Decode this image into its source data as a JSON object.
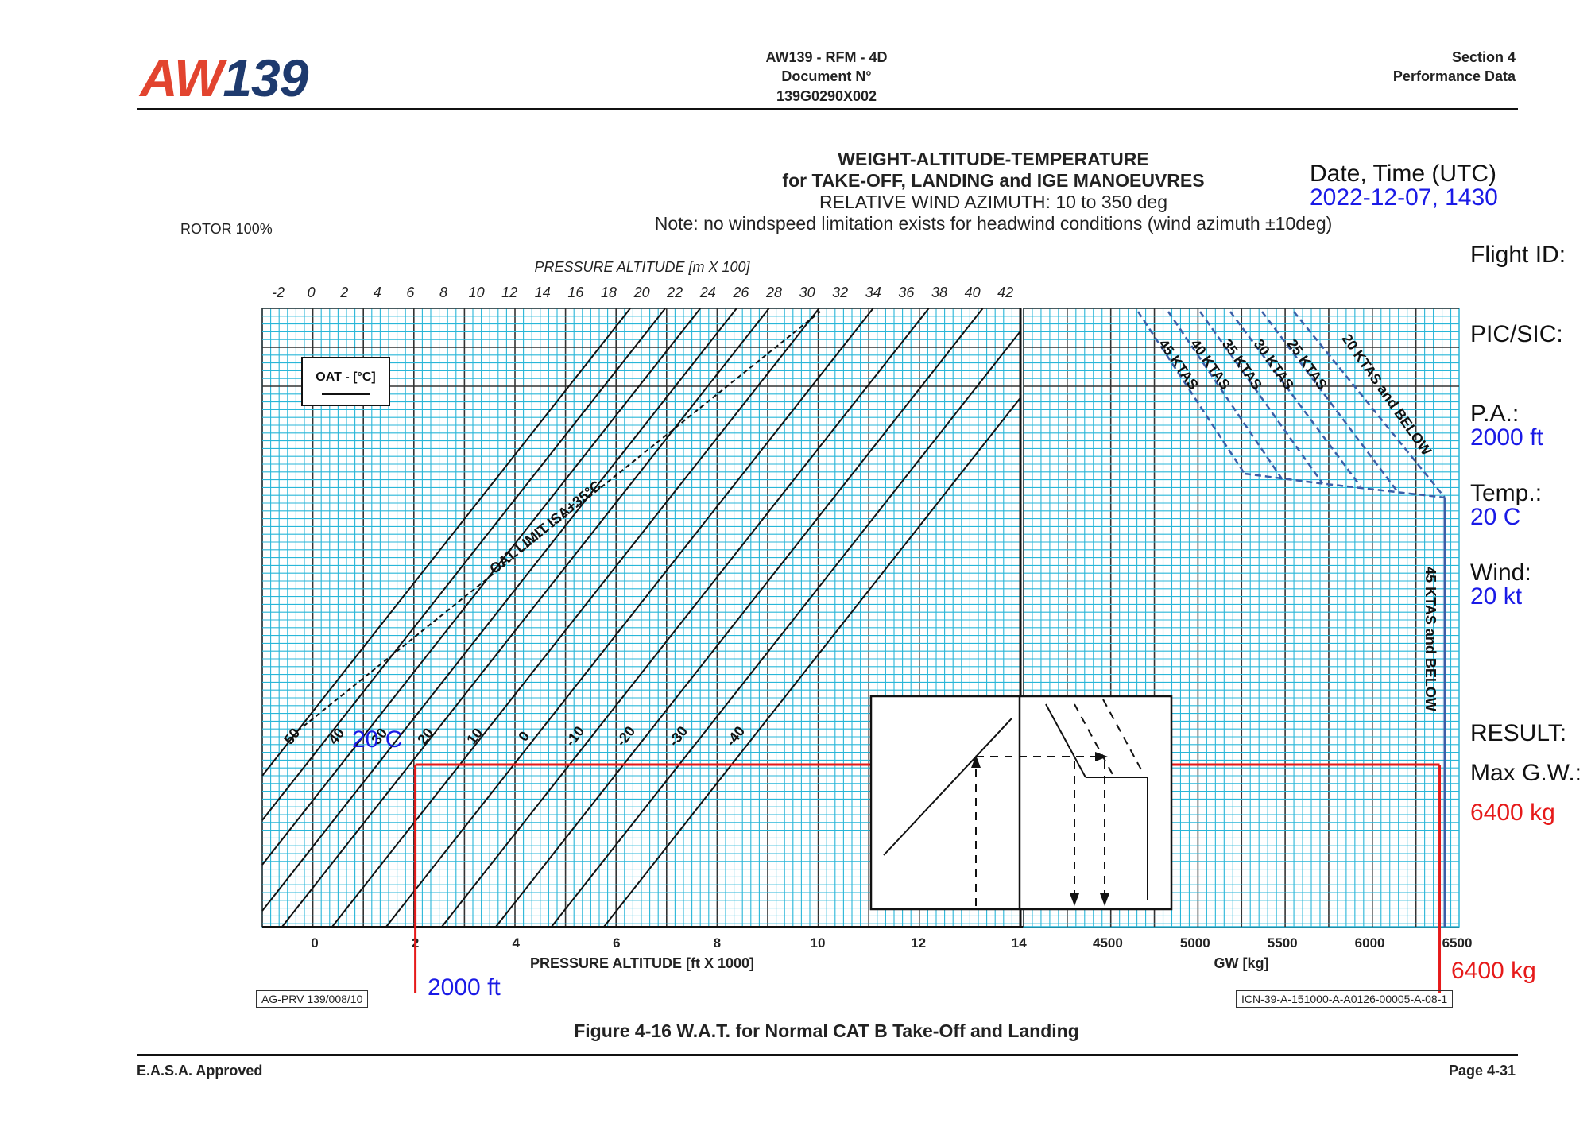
{
  "header": {
    "logo_text_a": "AW",
    "logo_text_b": "139",
    "doc_title": "AW139 - RFM - 4D",
    "doc_label": "Document N°",
    "doc_number": "139G0290X002",
    "section": "Section 4",
    "section_title": "Performance Data"
  },
  "chart_titles": {
    "line1": "WEIGHT-ALTITUDE-TEMPERATURE",
    "line2": "for TAKE-OFF, LANDING and IGE MANOEUVRES",
    "line3": "RELATIVE WIND AZIMUTH: 10 to 350 deg",
    "line4": "Note: no windspeed limitation exists for headwind conditions (wind azimuth ±10deg)",
    "rotor": "ROTOR 100%"
  },
  "form": {
    "date_label": "Date, Time (UTC)",
    "date_value": "2022-12-07, 1430",
    "flight_label": "Flight ID:",
    "pic_label": "PIC/SIC:",
    "pa_label": "P.A.:",
    "pa_value": "2000 ft",
    "temp_label": "Temp.:",
    "temp_value": "20 C",
    "wind_label": "Wind:",
    "wind_value": "20 kt",
    "result_label": "RESULT:",
    "maxgw_label": "Max G.W.:",
    "maxgw_value": "6400 kg"
  },
  "annotations": {
    "oat_marker": "20 C",
    "pa_marker": "2000 ft",
    "gw_marker": "6400 kg"
  },
  "chart_data": {
    "type": "line",
    "left_panel": {
      "legend_title": "OAT - [°C]",
      "top_axis_label": "PRESSURE ALTITUDE [m X 100]",
      "top_ticks": [
        "-2",
        "0",
        "2",
        "4",
        "6",
        "8",
        "10",
        "12",
        "14",
        "16",
        "18",
        "20",
        "22",
        "24",
        "26",
        "28",
        "30",
        "32",
        "34",
        "36",
        "38",
        "40",
        "42"
      ],
      "bottom_axis_label": "PRESSURE ALTITUDE [ft X 1000]",
      "bottom_ticks": [
        "0",
        "2",
        "4",
        "6",
        "8",
        "10",
        "12",
        "14"
      ],
      "xlim_ft_x1000": [
        -1,
        14
      ],
      "oat_lines": [
        "50",
        "40",
        "30",
        "20",
        "10",
        "0",
        "-10",
        "-20",
        "-30",
        "-40"
      ],
      "oat_limit_label": "OAT LIMIT ISA+35°C",
      "grid": true
    },
    "right_panel": {
      "axis_label": "GW [kg]",
      "ticks": [
        "4500",
        "5000",
        "5500",
        "6000",
        "6500"
      ],
      "xlim": [
        4000,
        6500
      ],
      "wind_lines": [
        "45 KTAS",
        "40 KTAS",
        "35 KTAS",
        "30 KTAS",
        "25 KTAS",
        "20 KTAS and BELOW"
      ],
      "vertical_limit_label": "45 KTAS and BELOW",
      "grid": true
    },
    "example": {
      "pressure_altitude_ft_x1000": 2,
      "oat_c": 20,
      "max_gw_kg": 6400
    },
    "colors": {
      "grid": "#29b6d8",
      "lines": "#111111",
      "wind_lines": "#3b5ea8",
      "example": "#e61a1a",
      "annotation": "#1a1ae6"
    }
  },
  "refs": {
    "left_ref": "AG-PRV 139/008/10",
    "right_ref": "ICN-39-A-151000-A-A0126-00005-A-08-1"
  },
  "figure_caption": "Figure 4-16  W.A.T. for Normal CAT B Take-Off and Landing",
  "footer": {
    "left": "E.A.S.A. Approved",
    "right": "Page 4-31"
  }
}
